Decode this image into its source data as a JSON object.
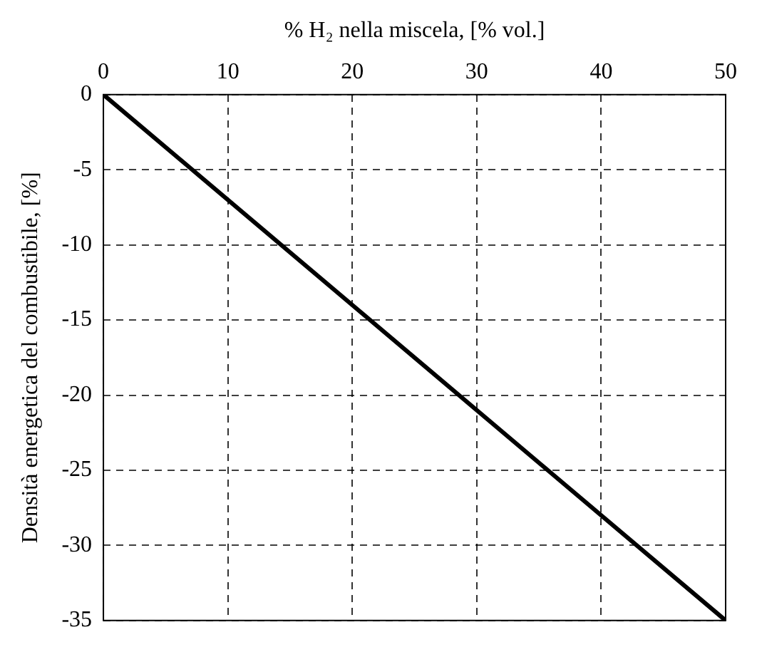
{
  "chart_data": {
    "type": "line",
    "xlabel": "% H₂ nella miscela, [% vol.]",
    "ylabel": "Densità energetica del combustibile, [%]",
    "x": [
      0,
      50
    ],
    "series": [
      {
        "color": "#000000",
        "values": [
          0,
          -35
        ]
      }
    ],
    "xlim": [
      0,
      50
    ],
    "xticks": [
      0,
      10,
      20,
      30,
      40,
      50
    ],
    "ylim": [
      -35,
      0
    ],
    "yticks": [
      0,
      -5,
      -10,
      -15,
      -20,
      -25,
      -30,
      -35
    ],
    "grid": true,
    "legend": false,
    "marker": "none",
    "line_style": "solid"
  }
}
